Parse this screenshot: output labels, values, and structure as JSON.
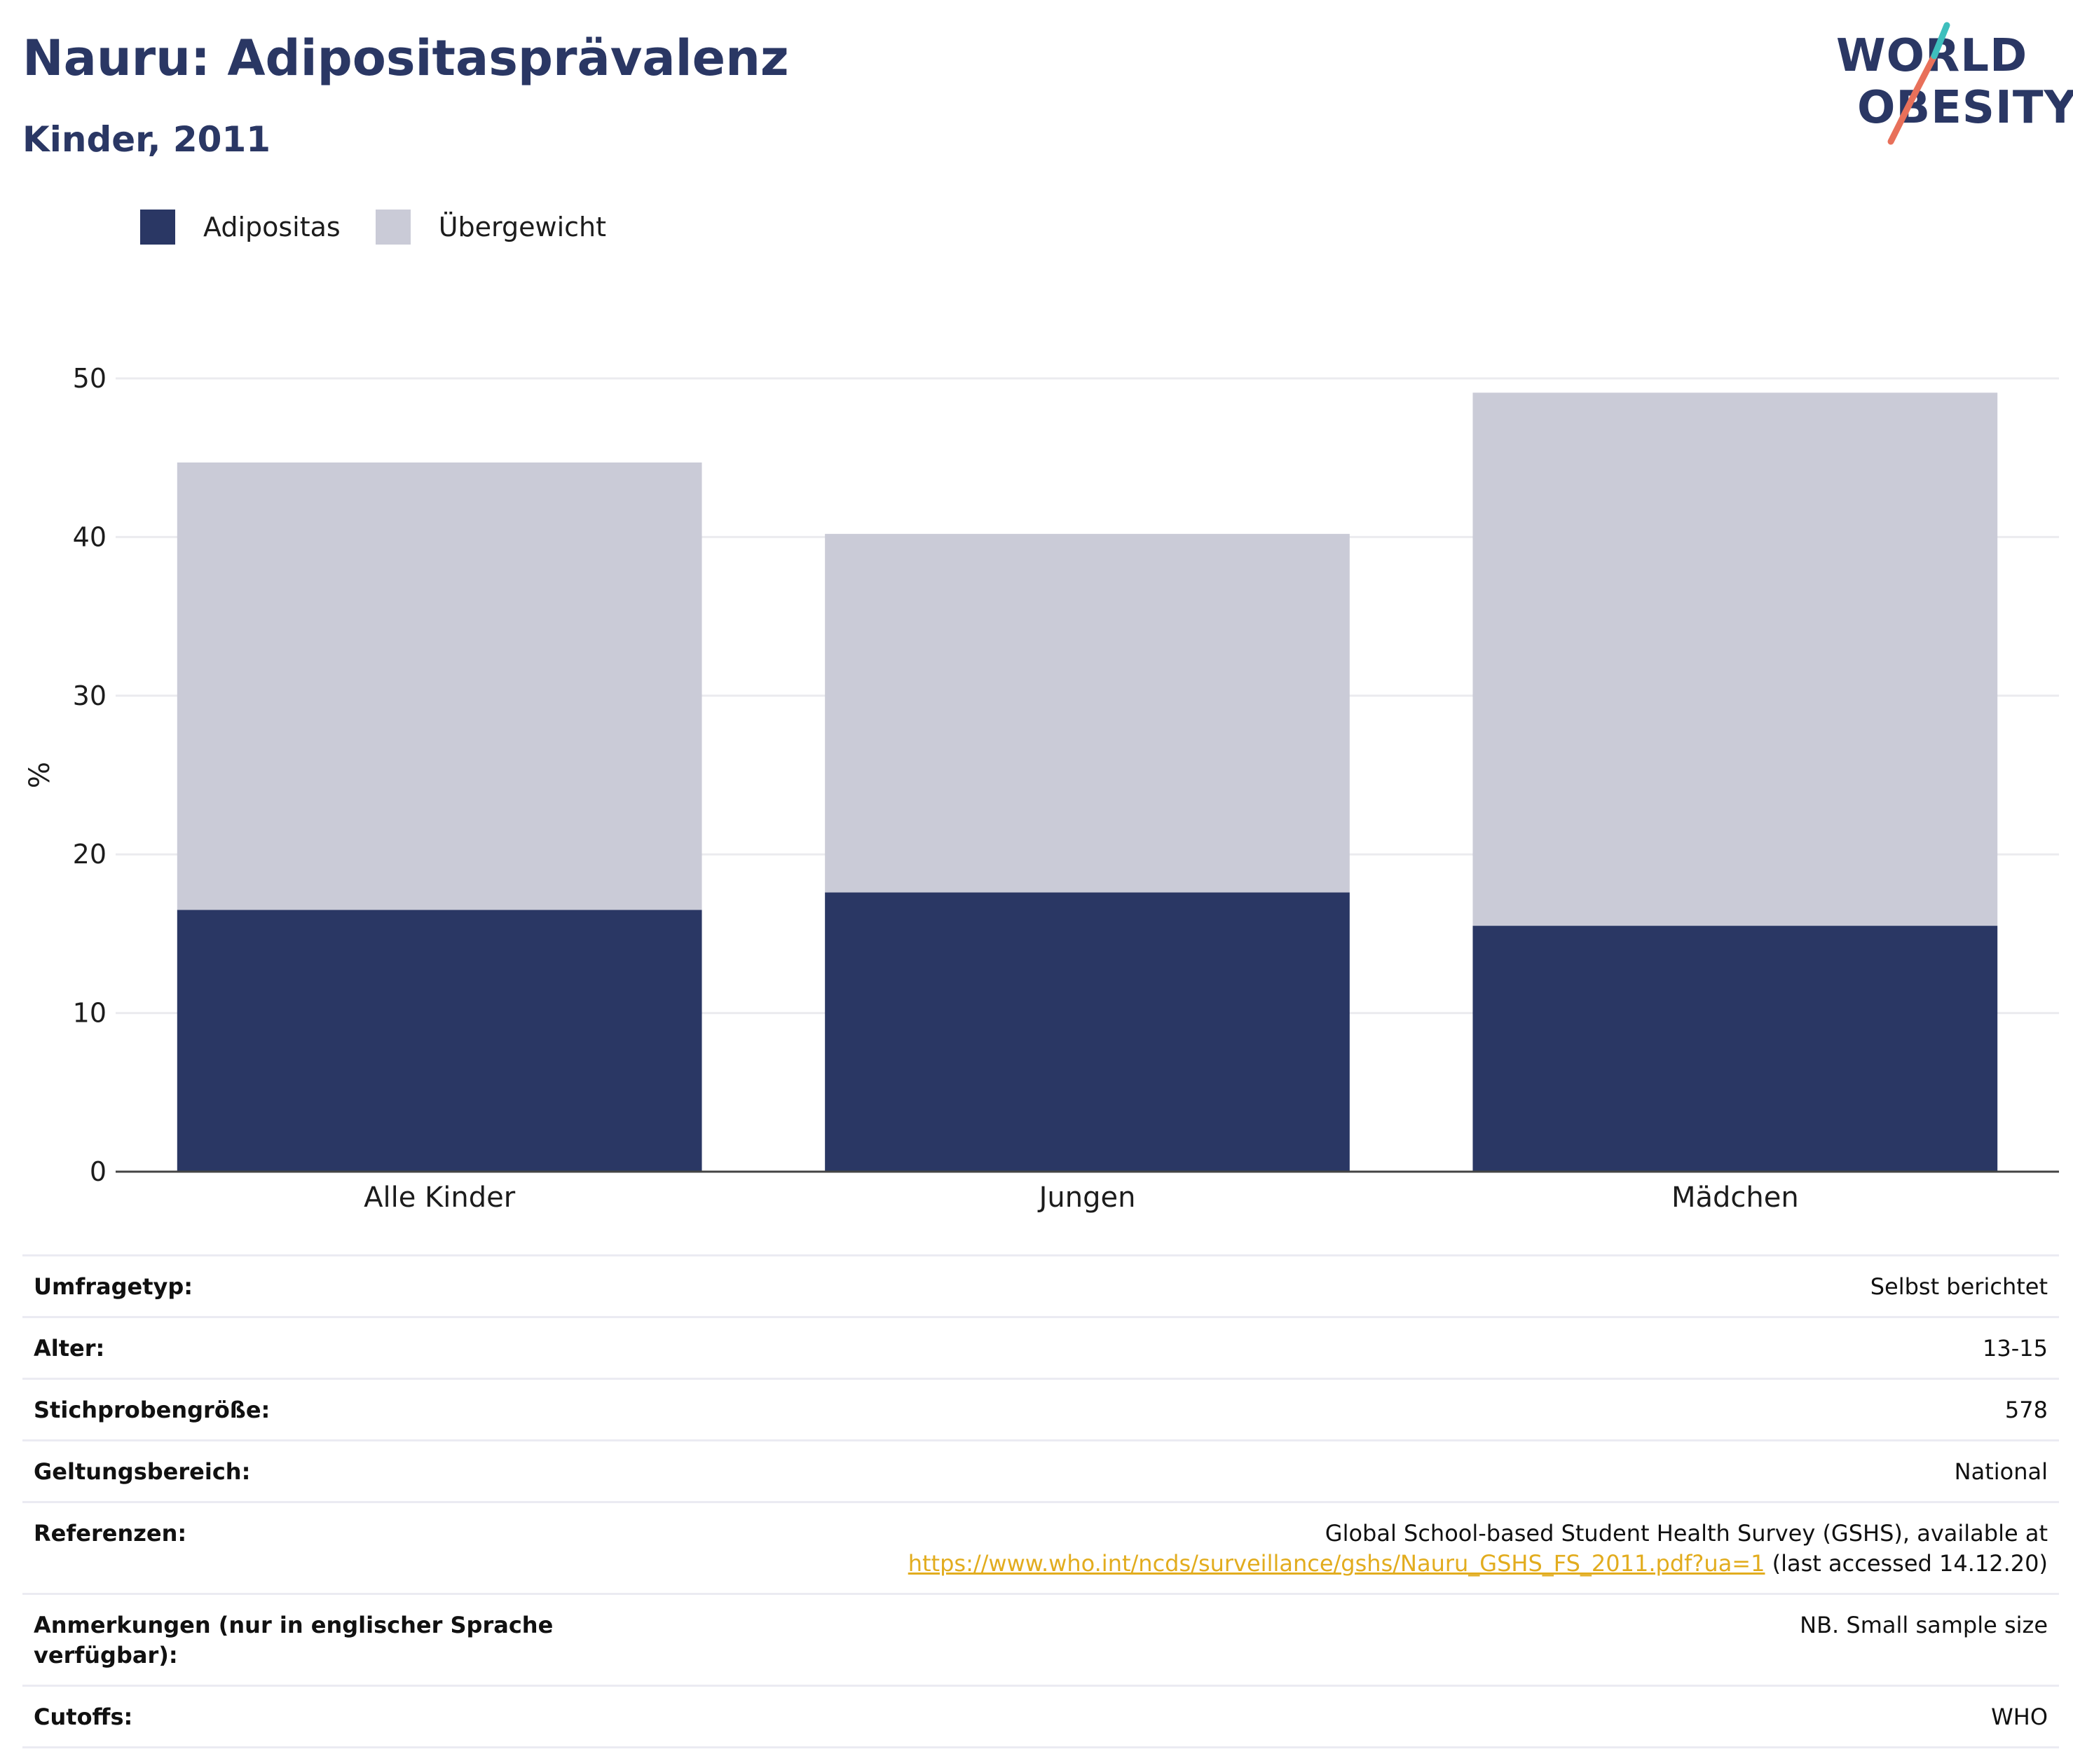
{
  "header": {
    "title": "Nauru: Adipositasprävalenz",
    "subtitle": "Kinder, 2011"
  },
  "logo": {
    "line1": "WORLD",
    "line2": "OBESITY"
  },
  "colors": {
    "obesity": "#2a3764",
    "overweight": "#cacbd7",
    "grid": "#ebebef",
    "axis": "#444444",
    "link": "#e2ac1e",
    "logo_teal": "#3ebfbd",
    "logo_coral": "#e8705a"
  },
  "chart_data": {
    "type": "bar",
    "stacked": true,
    "categories": [
      "Alle Kinder",
      "Jungen",
      "Mädchen"
    ],
    "series": [
      {
        "name": "Adipositas",
        "values": [
          16.5,
          17.6,
          15.5
        ]
      },
      {
        "name": "Übergewicht",
        "values": [
          28.2,
          22.6,
          33.6
        ]
      }
    ],
    "ylabel": "%",
    "ylim": [
      0,
      50
    ],
    "yticks": [
      0,
      10,
      20,
      30,
      40,
      50
    ],
    "grid": true,
    "legend_position": "top-left"
  },
  "info": {
    "rows": [
      {
        "label": "Umfragetyp:",
        "value": "Selbst berichtet"
      },
      {
        "label": "Alter:",
        "value": "13-15"
      },
      {
        "label": "Stichprobengröße:",
        "value": "578"
      },
      {
        "label": "Geltungsbereich:",
        "value": "National"
      }
    ],
    "references": {
      "label": "Referenzen:",
      "line1": "Global School-based Student Health Survey (GSHS), available at",
      "link": "https://www.who.int/ncds/surveillance/gshs/Nauru_GSHS_FS_2011.pdf?ua=1",
      "suffix": " (last accessed 14.12.20)"
    },
    "notes": {
      "label": "Anmerkungen (nur in englischer Sprache verfügbar):",
      "value": "NB. Small sample size"
    },
    "cutoffs": {
      "label": "Cutoffs:",
      "value": "WHO"
    }
  }
}
